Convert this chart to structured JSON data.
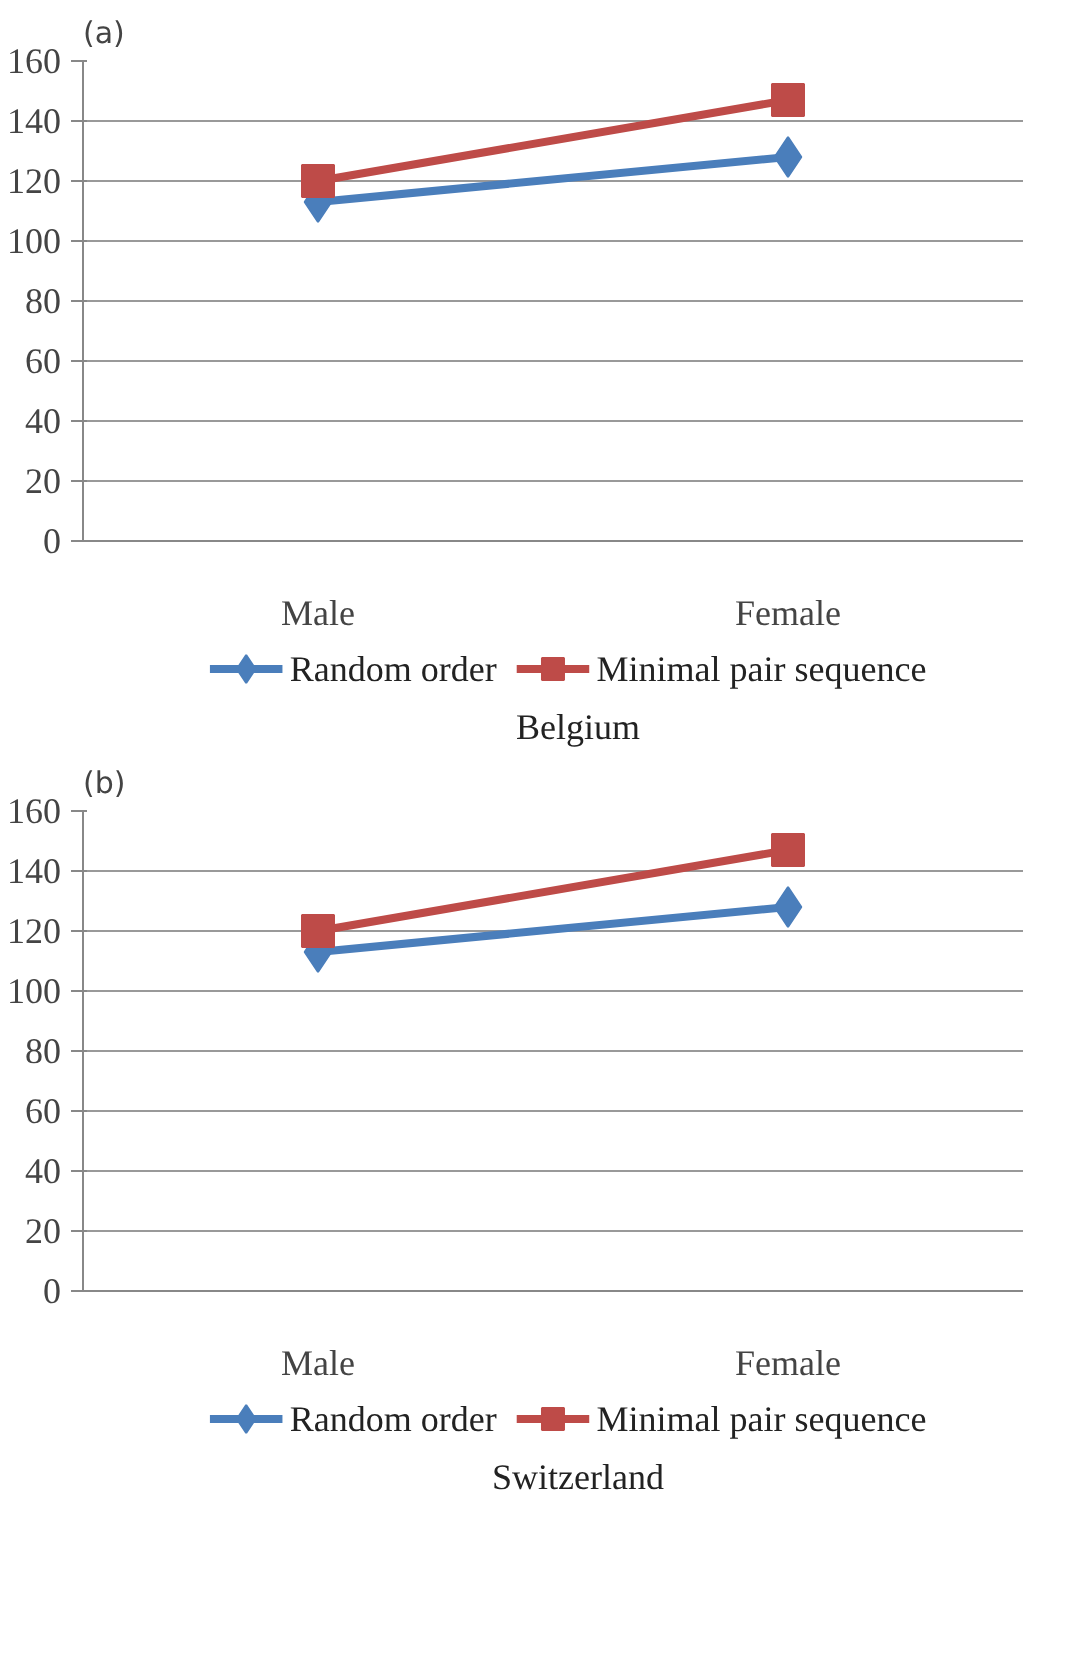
{
  "chart_data": [
    {
      "type": "line",
      "title": "(a)",
      "xlabel": "Belgium",
      "categories": [
        "Male",
        "Female"
      ],
      "ylim": [
        0,
        160
      ],
      "yticks": [
        0,
        20,
        40,
        60,
        80,
        100,
        120,
        140,
        160
      ],
      "grid": "y",
      "legend": "bottom",
      "series": [
        {
          "name": "Random order",
          "color": "#4a7ebb",
          "marker": "diamond",
          "values": [
            113,
            128
          ]
        },
        {
          "name": "Minimal pair sequence",
          "color": "#be4b48",
          "marker": "square",
          "values": [
            120,
            147
          ]
        }
      ]
    },
    {
      "type": "line",
      "title": "(b)",
      "xlabel": "Switzerland",
      "categories": [
        "Male",
        "Female"
      ],
      "ylim": [
        0,
        160
      ],
      "yticks": [
        0,
        20,
        40,
        60,
        80,
        100,
        120,
        140,
        160
      ],
      "grid": "y",
      "legend": "bottom",
      "series": [
        {
          "name": "Random order",
          "color": "#4a7ebb",
          "marker": "diamond",
          "values": [
            113,
            128
          ]
        },
        {
          "name": "Minimal pair sequence",
          "color": "#be4b48",
          "marker": "square",
          "values": [
            120,
            147
          ]
        }
      ]
    }
  ]
}
